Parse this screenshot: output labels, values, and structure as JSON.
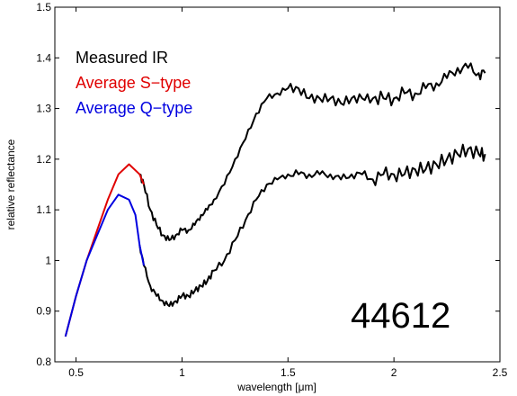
{
  "chart_data": {
    "type": "line",
    "xlabel": "wavelength [μm]",
    "ylabel": "relative reflectance",
    "xlim": [
      0.4,
      2.5
    ],
    "ylim": [
      0.8,
      1.5
    ],
    "xticks": [
      0.5,
      1,
      1.5,
      2,
      2.5
    ],
    "xtick_labels": [
      "0.5",
      "1",
      "1.5",
      "2",
      "2.5"
    ],
    "yticks": [
      0.8,
      0.9,
      1.0,
      1.1,
      1.2,
      1.3,
      1.4,
      1.5
    ],
    "ytick_labels": [
      "0.8",
      "0.9",
      "1",
      "1.1",
      "1.2",
      "1.3",
      "1.4",
      "1.5"
    ],
    "annotation": "44612",
    "grid": false,
    "legend_position": "top-left",
    "series": [
      {
        "name": "Measured IR",
        "color": "#000000",
        "x": [
          0.8,
          0.82,
          0.85,
          0.88,
          0.91,
          0.94,
          0.97,
          1.0,
          1.03,
          1.06,
          1.09,
          1.12,
          1.15,
          1.2,
          1.25,
          1.3,
          1.35,
          1.4,
          1.45,
          1.5,
          1.55,
          1.6,
          1.65,
          1.7,
          1.75,
          1.8,
          1.85,
          1.9,
          1.95,
          2.0,
          2.05,
          2.1,
          2.15,
          2.2,
          2.25,
          2.3,
          2.35,
          2.4,
          2.43
        ],
        "values": [
          1.17,
          1.15,
          1.1,
          1.07,
          1.05,
          1.04,
          1.05,
          1.06,
          1.06,
          1.07,
          1.09,
          1.1,
          1.12,
          1.15,
          1.2,
          1.24,
          1.29,
          1.32,
          1.33,
          1.34,
          1.34,
          1.32,
          1.32,
          1.32,
          1.31,
          1.32,
          1.32,
          1.32,
          1.32,
          1.32,
          1.33,
          1.33,
          1.34,
          1.35,
          1.36,
          1.38,
          1.38,
          1.37,
          1.37
        ]
      },
      {
        "name": "Measured IR",
        "color": "#000000",
        "x": [
          0.8,
          0.82,
          0.85,
          0.88,
          0.91,
          0.94,
          0.97,
          1.0,
          1.03,
          1.06,
          1.09,
          1.12,
          1.15,
          1.2,
          1.25,
          1.3,
          1.35,
          1.4,
          1.45,
          1.5,
          1.55,
          1.6,
          1.65,
          1.7,
          1.75,
          1.8,
          1.85,
          1.9,
          1.95,
          2.0,
          2.05,
          2.1,
          2.15,
          2.2,
          2.25,
          2.3,
          2.35,
          2.4,
          2.43
        ],
        "values": [
          1.03,
          0.99,
          0.95,
          0.93,
          0.92,
          0.91,
          0.92,
          0.93,
          0.93,
          0.94,
          0.95,
          0.96,
          0.98,
          1.0,
          1.04,
          1.08,
          1.12,
          1.15,
          1.16,
          1.17,
          1.17,
          1.17,
          1.17,
          1.17,
          1.16,
          1.17,
          1.17,
          1.16,
          1.17,
          1.17,
          1.17,
          1.18,
          1.18,
          1.19,
          1.2,
          1.21,
          1.22,
          1.21,
          1.21
        ]
      },
      {
        "name": "Average S−type",
        "color": "#e00000",
        "x": [
          0.45,
          0.5,
          0.55,
          0.6,
          0.65,
          0.7,
          0.75,
          0.8,
          0.82
        ],
        "values": [
          0.85,
          0.93,
          1.0,
          1.06,
          1.12,
          1.17,
          1.19,
          1.17,
          1.15
        ]
      },
      {
        "name": "Average Q−type",
        "color": "#0000e0",
        "x": [
          0.45,
          0.5,
          0.55,
          0.6,
          0.65,
          0.7,
          0.75,
          0.78,
          0.8,
          0.82
        ],
        "values": [
          0.85,
          0.93,
          1.0,
          1.05,
          1.1,
          1.13,
          1.12,
          1.09,
          1.03,
          0.99
        ]
      }
    ]
  },
  "legend": {
    "items": [
      {
        "label": "Measured IR",
        "color": "#000000"
      },
      {
        "label": "Average S−type",
        "color": "#e00000"
      },
      {
        "label": "Average Q−type",
        "color": "#0000e0"
      }
    ]
  }
}
